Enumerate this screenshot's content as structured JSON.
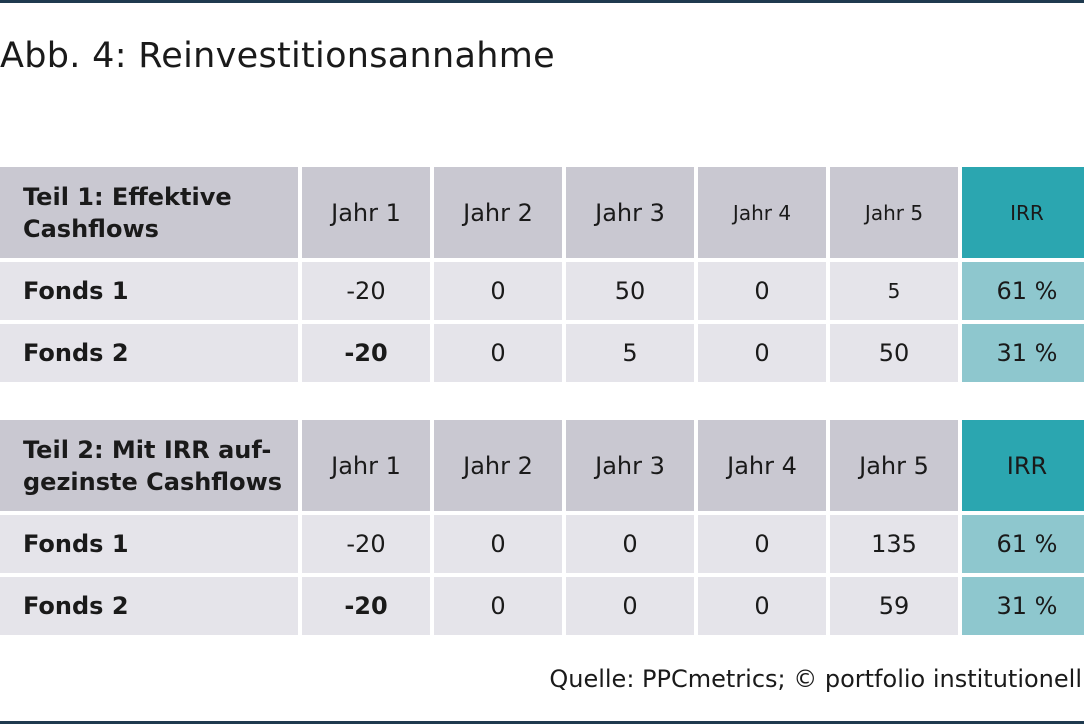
{
  "title": "Abb. 4: Reinvestitionsannahme",
  "source": "Quelle: PPCmetrics; © portfolio institutionell",
  "colors": {
    "header_bg": "#c9c8d1",
    "cell_bg": "#e5e4ea",
    "irr_header": "#2ba6b0",
    "irr_cell": "#8ec7ce",
    "rule": "#1f3a4f"
  },
  "chart_data": [
    {
      "type": "table",
      "title": "Teil 1: Effektive Cashflows",
      "columns": [
        "Jahr 1",
        "Jahr 2",
        "Jahr 3",
        "Jahr 4",
        "Jahr 5",
        "IRR"
      ],
      "rows": [
        {
          "label": "Fonds 1",
          "values": [
            "-20",
            "0",
            "50",
            "0",
            "5"
          ],
          "irr": "61 %"
        },
        {
          "label": "Fonds 2",
          "values": [
            "-20",
            "0",
            "5",
            "0",
            "50"
          ],
          "irr": "31 %"
        }
      ]
    },
    {
      "type": "table",
      "title": "Teil 2: Mit IRR auf-gezinste Cashflows",
      "columns": [
        "Jahr 1",
        "Jahr 2",
        "Jahr 3",
        "Jahr 4",
        "Jahr 5",
        "IRR"
      ],
      "rows": [
        {
          "label": "Fonds 1",
          "values": [
            "-20",
            "0",
            "0",
            "0",
            "135"
          ],
          "irr": "61 %"
        },
        {
          "label": "Fonds 2",
          "values": [
            "-20",
            "0",
            "0",
            "0",
            "59"
          ],
          "irr": "31 %"
        }
      ]
    }
  ]
}
